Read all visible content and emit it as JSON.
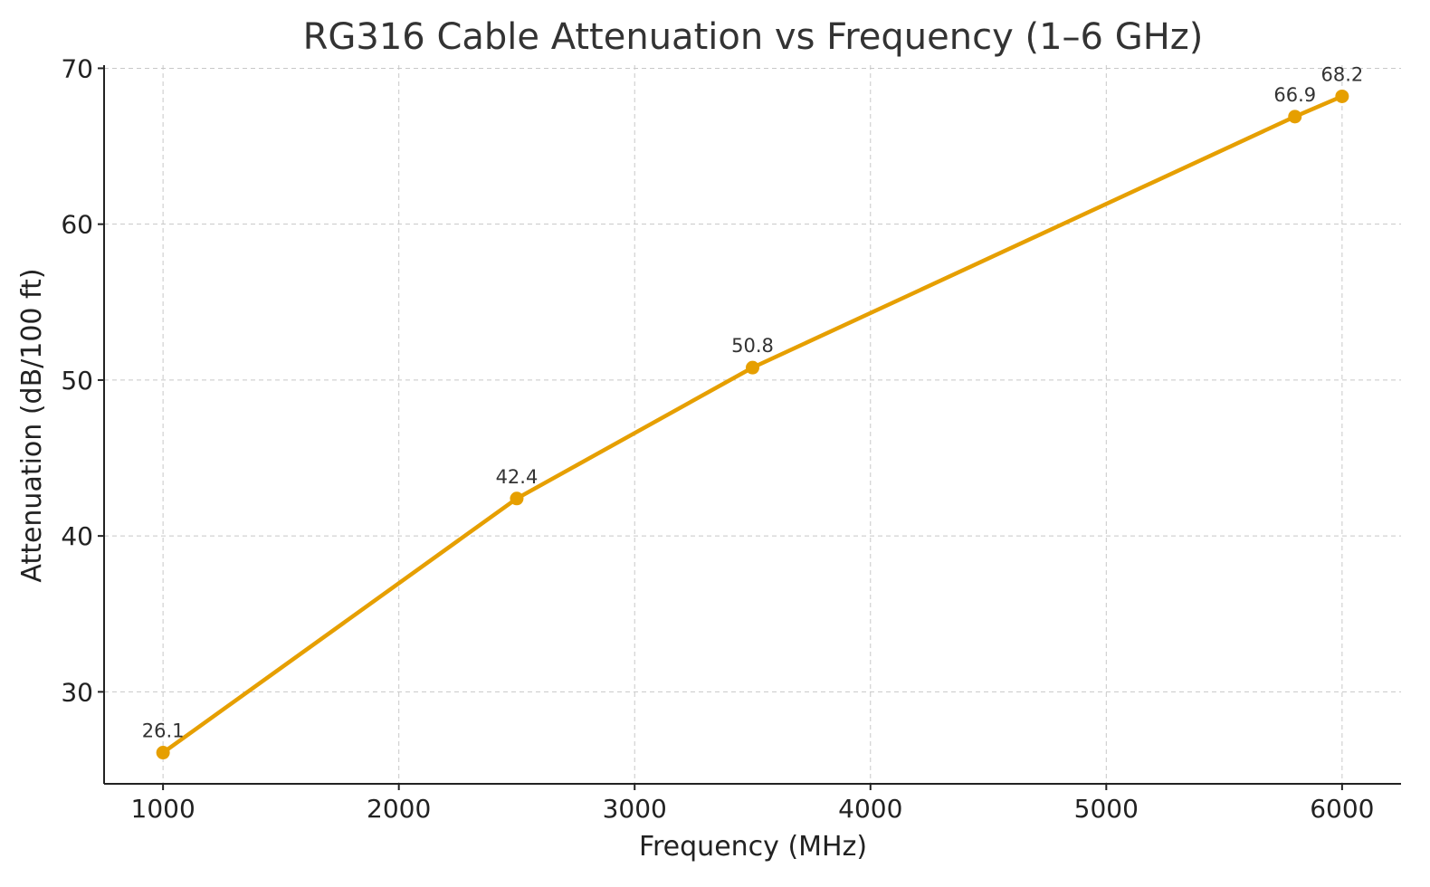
{
  "chart_data": {
    "type": "line",
    "title": "RG316 Cable Attenuation vs Frequency (1–6 GHz)",
    "xlabel": "Frequency (MHz)",
    "ylabel": "Attenuation (dB/100 ft)",
    "x": [
      1000,
      2500,
      3500,
      5800,
      6000
    ],
    "series": [
      {
        "values": [
          26.1,
          42.4,
          50.8,
          66.9,
          68.2
        ],
        "color": "#E69F00"
      }
    ],
    "data_labels": [
      "26.1",
      "42.4",
      "50.8",
      "66.9",
      "68.2"
    ],
    "xlim": [
      750,
      6250
    ],
    "ylim": [
      24.1,
      70.2
    ],
    "xticks": [
      "1000",
      "2000",
      "3000",
      "4000",
      "5000",
      "6000"
    ],
    "yticks": [
      "30",
      "40",
      "50",
      "60",
      "70"
    ],
    "grid": true,
    "markers": "circle"
  }
}
